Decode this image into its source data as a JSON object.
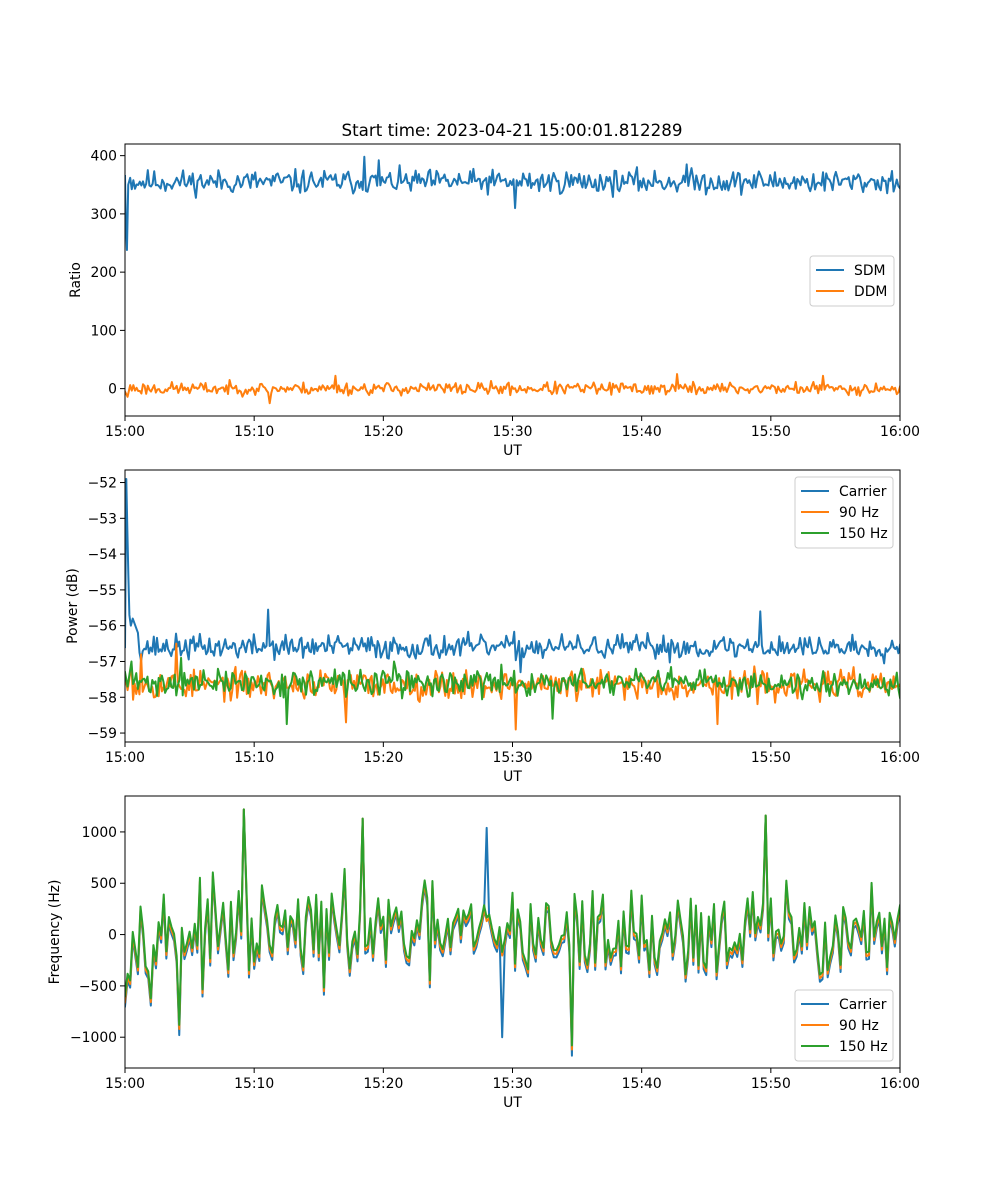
{
  "figure": {
    "title": "Start time: 2023-04-21 15:00:01.812289",
    "colors": {
      "c0": "#1f77b4",
      "c1": "#ff7f0e",
      "c2": "#2ca02c"
    }
  },
  "chart_data": [
    {
      "type": "line",
      "xlabel": "UT",
      "ylabel": "Ratio",
      "xlim": [
        "15:00",
        "16:00"
      ],
      "ylim": [
        -47,
        420
      ],
      "xticks": [
        "15:00",
        "15:10",
        "15:20",
        "15:30",
        "15:40",
        "15:50",
        "16:00"
      ],
      "yticks": [
        0,
        100,
        200,
        300,
        400
      ],
      "yticklabels": [
        "0",
        "100",
        "200",
        "300",
        "400"
      ],
      "legend": "center-right",
      "series": [
        {
          "name": "SDM",
          "color": "#1f77b4",
          "samples": 480,
          "start": [
            0,
            365
          ],
          "initial": [
            [
              0.05,
              300
            ],
            [
              0.15,
              238
            ],
            [
              0.25,
              350
            ],
            [
              0.4,
              362
            ]
          ],
          "mean": 355,
          "noise": 15,
          "seed": 11,
          "dips": [
            [
              30.2,
              310
            ]
          ],
          "peaks": [
            [
              18.5,
              398
            ],
            [
              19.7,
              392
            ],
            [
              43.5,
              385
            ]
          ]
        },
        {
          "name": "DDM",
          "color": "#ff7f0e",
          "samples": 480,
          "start": [
            0,
            -5
          ],
          "initial": [
            [
              0.2,
              -14
            ],
            [
              0.4,
              6
            ]
          ],
          "mean": 0,
          "noise": 8,
          "seed": 23,
          "dips": [
            [
              11.2,
              -25
            ]
          ],
          "peaks": [
            [
              42.8,
              25
            ],
            [
              54.0,
              22
            ],
            [
              16.3,
              22
            ]
          ]
        }
      ]
    },
    {
      "type": "line",
      "xlabel": "UT",
      "ylabel": "Power (dB)",
      "xlim": [
        "15:00",
        "16:00"
      ],
      "ylim": [
        -59.25,
        -51.65
      ],
      "xticks": [
        "15:00",
        "15:10",
        "15:20",
        "15:30",
        "15:40",
        "15:50",
        "16:00"
      ],
      "yticks": [
        -59,
        -58,
        -57,
        -56,
        -55,
        -54,
        -53,
        -52
      ],
      "yticklabels": [
        "−59",
        "−58",
        "−57",
        "−56",
        "−55",
        "−54",
        "−53",
        "−52"
      ],
      "legend": "top-right",
      "series": [
        {
          "name": "Carrier",
          "color": "#1f77b4",
          "samples": 480,
          "start": [
            0,
            -56.6
          ],
          "initial": [
            [
              0.1,
              -51.9
            ],
            [
              0.18,
              -53.3
            ],
            [
              0.26,
              -54.6
            ],
            [
              0.34,
              -55.7
            ],
            [
              0.45,
              -56.0
            ],
            [
              0.6,
              -55.8
            ],
            [
              1.0,
              -56.2
            ]
          ],
          "mean": -56.6,
          "noise": 0.25,
          "seed": 37,
          "dips": [
            [
              30.6,
              -57.3
            ]
          ],
          "peaks": [
            [
              11.1,
              -55.55
            ],
            [
              49.2,
              -55.6
            ]
          ]
        },
        {
          "name": "90 Hz",
          "color": "#ff7f0e",
          "samples": 480,
          "start": [
            0,
            -57.4
          ],
          "initial": [
            [
              0.2,
              -57.8
            ],
            [
              0.5,
              -57.1
            ]
          ],
          "mean": -57.65,
          "noise": 0.3,
          "seed": 53,
          "dips": [
            [
              30.3,
              -58.9
            ],
            [
              45.9,
              -58.75
            ],
            [
              17.1,
              -58.7
            ]
          ],
          "peaks": [
            [
              4.0,
              -56.5
            ],
            [
              1.2,
              -56.8
            ]
          ]
        },
        {
          "name": "150 Hz",
          "color": "#2ca02c",
          "samples": 480,
          "start": [
            0,
            -57.3
          ],
          "initial": [
            [
              0.2,
              -57.7
            ],
            [
              0.5,
              -57.0
            ]
          ],
          "mean": -57.6,
          "noise": 0.27,
          "seed": 71,
          "dips": [
            [
              12.5,
              -58.75
            ],
            [
              33.1,
              -58.6
            ]
          ],
          "peaks": [
            [
              4.3,
              -56.9
            ],
            [
              20.8,
              -57.0
            ]
          ]
        }
      ]
    },
    {
      "type": "line",
      "xlabel": "UT",
      "ylabel": "Frequency (Hz)",
      "xlim": [
        "15:00",
        "16:00"
      ],
      "ylim": [
        -1300,
        1350
      ],
      "xticks": [
        "15:00",
        "15:10",
        "15:20",
        "15:30",
        "15:40",
        "15:50",
        "16:00"
      ],
      "yticks": [
        -1000,
        -500,
        0,
        500,
        1000
      ],
      "yticklabels": [
        "−1000",
        "−500",
        "0",
        "500",
        "1000"
      ],
      "legend": "bottom-right",
      "series": [
        {
          "name": "Carrier",
          "color": "#1f77b4",
          "samples": 300,
          "start": [
            0,
            -700
          ],
          "mean": 20,
          "noise": 330,
          "seed": 97,
          "offset": -70,
          "dips": [
            [
              34.6,
              -1180
            ],
            [
              4.2,
              -980
            ],
            [
              29.2,
              -1000
            ]
          ],
          "peaks": [
            [
              9.3,
              1220
            ],
            [
              49.7,
              1160
            ],
            [
              18.5,
              1130
            ],
            [
              28.0,
              1040
            ]
          ]
        },
        {
          "name": "90 Hz",
          "color": "#ff7f0e",
          "samples": 300,
          "start": [
            0,
            -660
          ],
          "mean": 20,
          "noise": 330,
          "seed": 97,
          "offset": -35,
          "dips": [
            [
              34.6,
              -1120
            ],
            [
              4.2,
              -920
            ]
          ],
          "peaks": [
            [
              9.3,
              1220
            ],
            [
              49.7,
              1160
            ],
            [
              18.5,
              1130
            ]
          ]
        },
        {
          "name": "150 Hz",
          "color": "#2ca02c",
          "samples": 300,
          "start": [
            0,
            -600
          ],
          "mean": 20,
          "noise": 330,
          "seed": 97,
          "offset": 0,
          "dips": [
            [
              34.6,
              -1080
            ],
            [
              4.2,
              -880
            ]
          ],
          "peaks": [
            [
              9.3,
              1220
            ],
            [
              49.7,
              1160
            ],
            [
              18.5,
              1130
            ]
          ]
        }
      ]
    }
  ]
}
